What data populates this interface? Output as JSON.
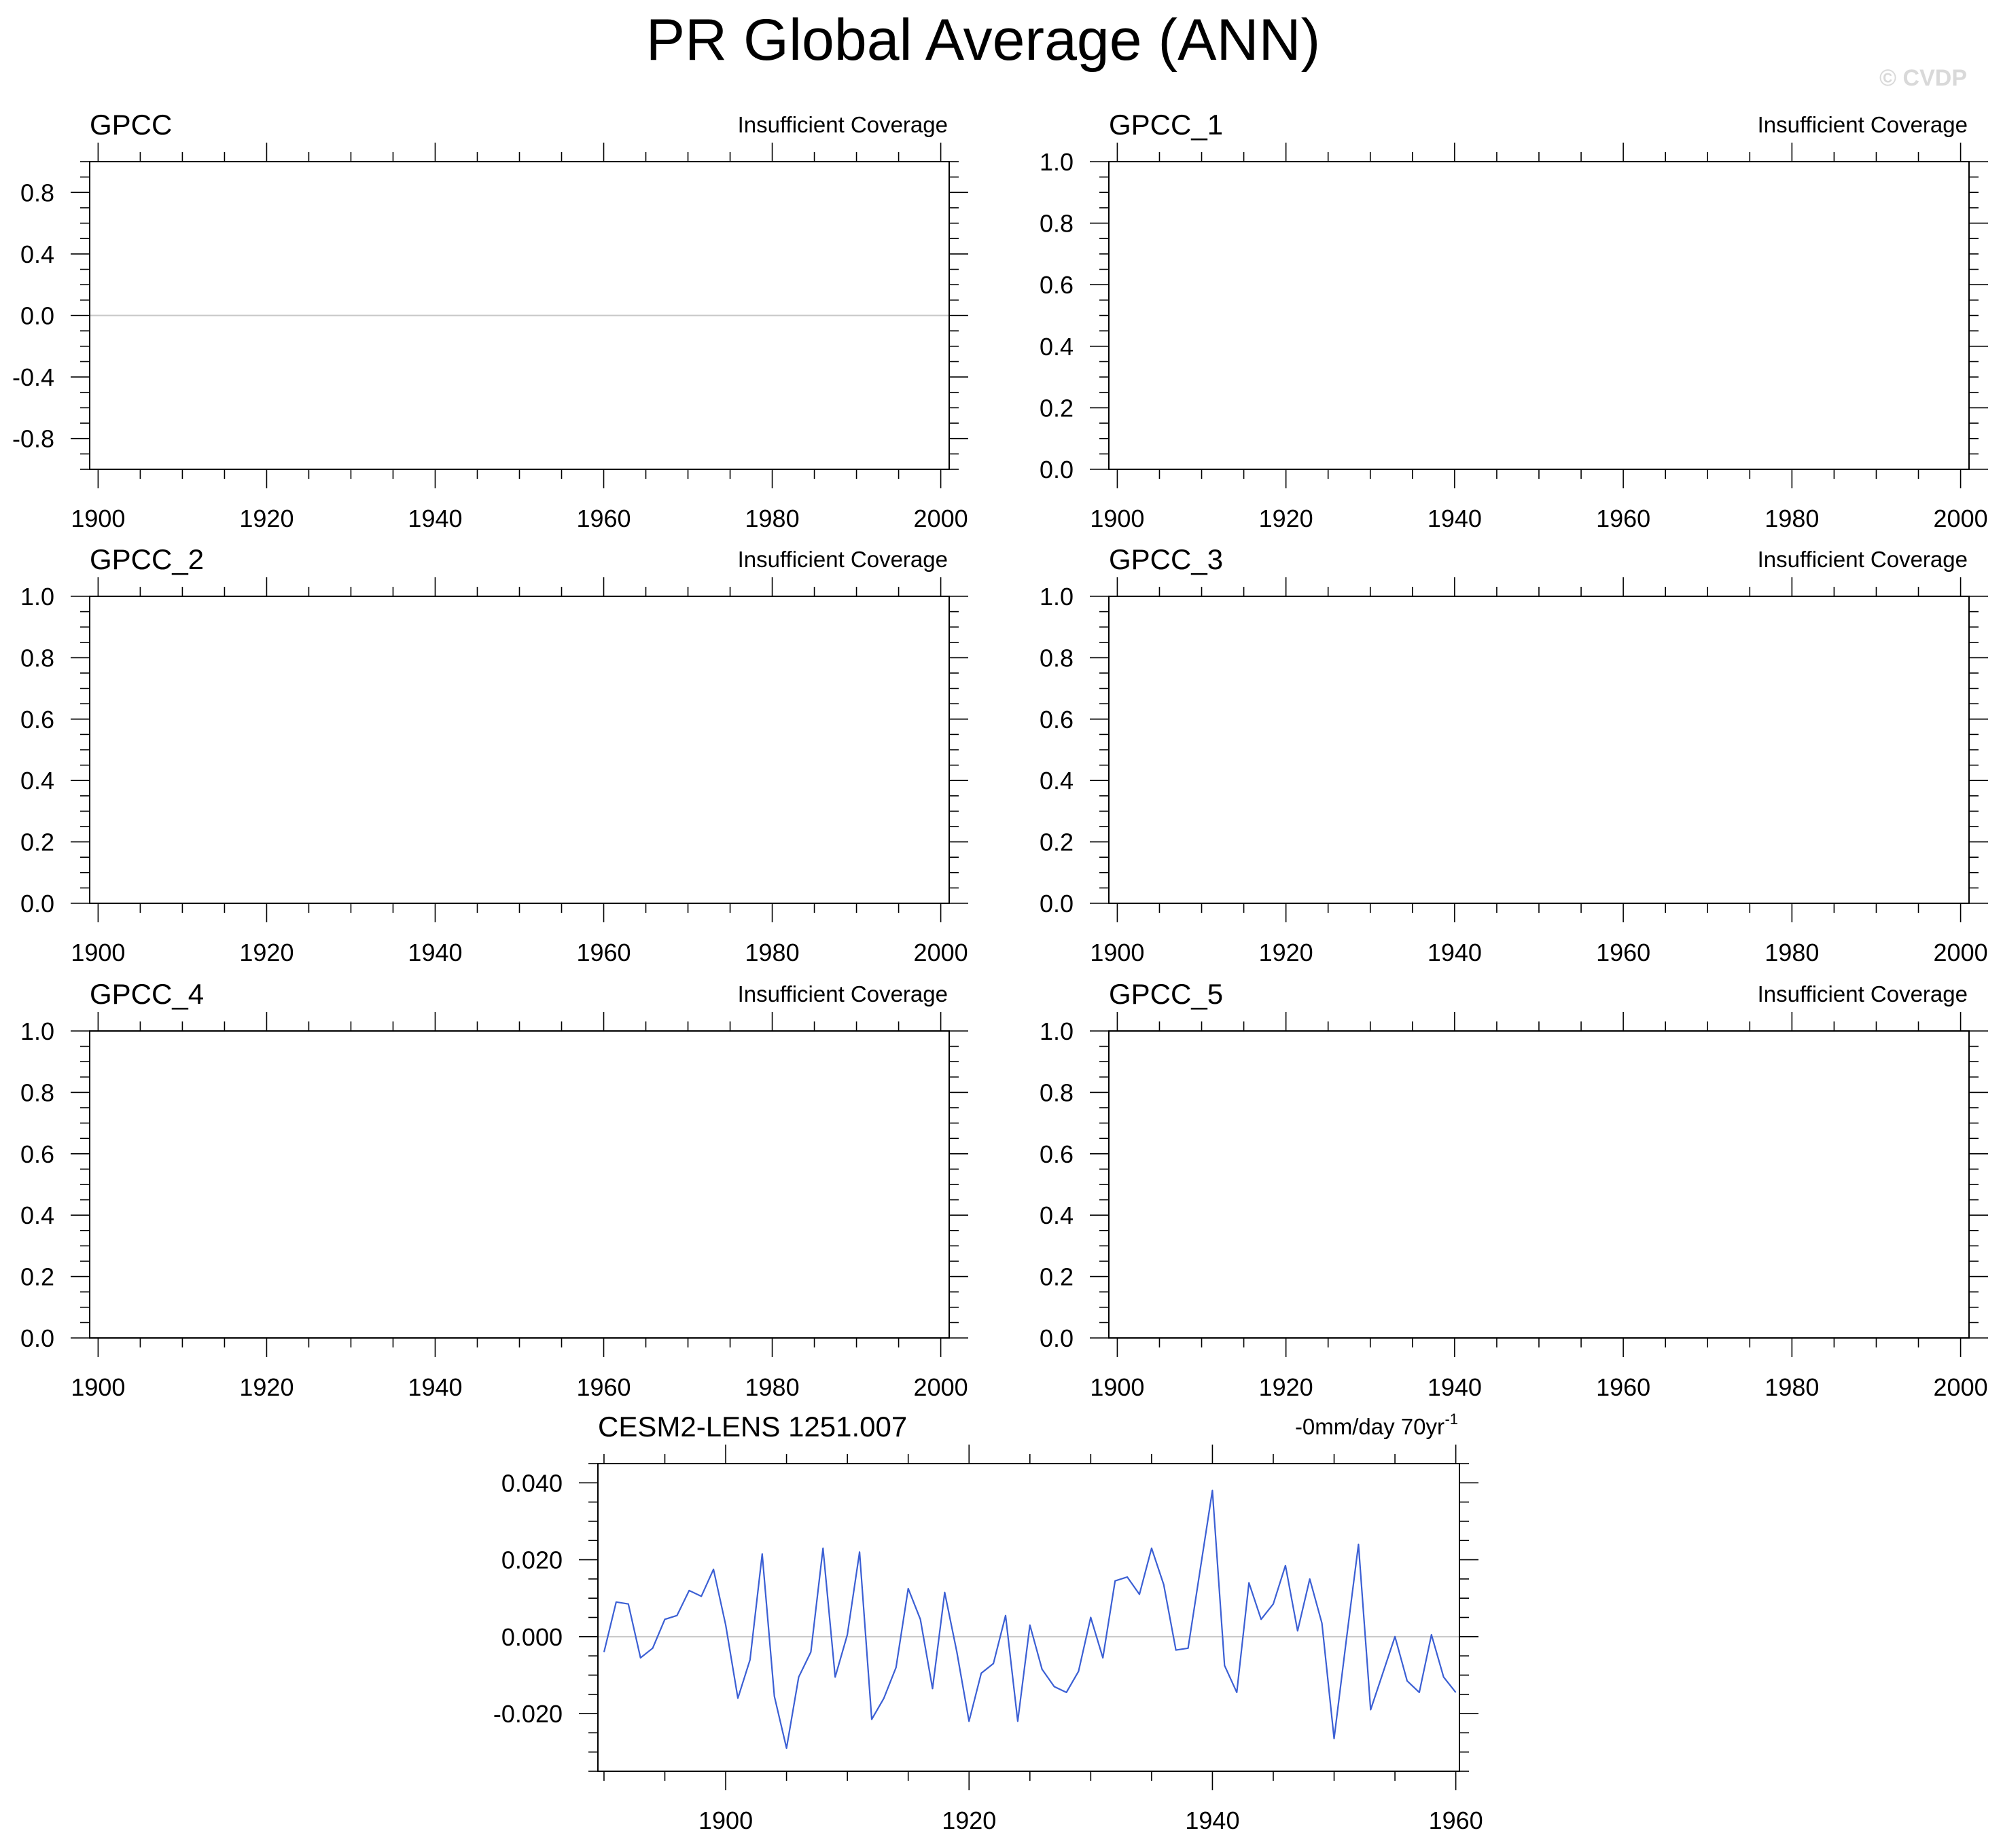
{
  "figure_title": "PR Global Average (ANN)",
  "watermark": "© CVDP",
  "colors": {
    "series": "#3b5fd4",
    "zero_line": "#c8c8c8",
    "frame": "#000000",
    "watermark": "#d9d9d9"
  },
  "chart_data": [
    {
      "type": "line",
      "title": "GPCC",
      "note": "Insufficient Coverage",
      "xlim": [
        1899,
        2001
      ],
      "ylim": [
        -1.0,
        1.0
      ],
      "xticks": [
        1900,
        1920,
        1940,
        1960,
        1980,
        2000
      ],
      "xtick_labels": [
        "1900",
        "1920",
        "1940",
        "1960",
        "1980",
        "2000"
      ],
      "yticks": [
        -0.8,
        -0.4,
        0.0,
        0.4,
        0.8
      ],
      "ytick_labels": [
        "-0.8",
        "-0.4",
        "0.0",
        "0.4",
        "0.8"
      ],
      "zero_line": true,
      "series": []
    },
    {
      "type": "line",
      "title": "GPCC_1",
      "note": "Insufficient Coverage",
      "xlim": [
        1899,
        2001
      ],
      "ylim": [
        0.0,
        1.0
      ],
      "xticks": [
        1900,
        1920,
        1940,
        1960,
        1980,
        2000
      ],
      "xtick_labels": [
        "1900",
        "1920",
        "1940",
        "1960",
        "1980",
        "2000"
      ],
      "yticks": [
        0.0,
        0.2,
        0.4,
        0.6,
        0.8,
        1.0
      ],
      "ytick_labels": [
        "0.0",
        "0.2",
        "0.4",
        "0.6",
        "0.8",
        "1.0"
      ],
      "zero_line": false,
      "series": []
    },
    {
      "type": "line",
      "title": "GPCC_2",
      "note": "Insufficient Coverage",
      "xlim": [
        1899,
        2001
      ],
      "ylim": [
        0.0,
        1.0
      ],
      "xticks": [
        1900,
        1920,
        1940,
        1960,
        1980,
        2000
      ],
      "xtick_labels": [
        "1900",
        "1920",
        "1940",
        "1960",
        "1980",
        "2000"
      ],
      "yticks": [
        0.0,
        0.2,
        0.4,
        0.6,
        0.8,
        1.0
      ],
      "ytick_labels": [
        "0.0",
        "0.2",
        "0.4",
        "0.6",
        "0.8",
        "1.0"
      ],
      "zero_line": false,
      "series": []
    },
    {
      "type": "line",
      "title": "GPCC_3",
      "note": "Insufficient Coverage",
      "xlim": [
        1899,
        2001
      ],
      "ylim": [
        0.0,
        1.0
      ],
      "xticks": [
        1900,
        1920,
        1940,
        1960,
        1980,
        2000
      ],
      "xtick_labels": [
        "1900",
        "1920",
        "1940",
        "1960",
        "1980",
        "2000"
      ],
      "yticks": [
        0.0,
        0.2,
        0.4,
        0.6,
        0.8,
        1.0
      ],
      "ytick_labels": [
        "0.0",
        "0.2",
        "0.4",
        "0.6",
        "0.8",
        "1.0"
      ],
      "zero_line": false,
      "series": []
    },
    {
      "type": "line",
      "title": "GPCC_4",
      "note": "Insufficient Coverage",
      "xlim": [
        1899,
        2001
      ],
      "ylim": [
        0.0,
        1.0
      ],
      "xticks": [
        1900,
        1920,
        1940,
        1960,
        1980,
        2000
      ],
      "xtick_labels": [
        "1900",
        "1920",
        "1940",
        "1960",
        "1980",
        "2000"
      ],
      "yticks": [
        0.0,
        0.2,
        0.4,
        0.6,
        0.8,
        1.0
      ],
      "ytick_labels": [
        "0.0",
        "0.2",
        "0.4",
        "0.6",
        "0.8",
        "1.0"
      ],
      "zero_line": false,
      "series": []
    },
    {
      "type": "line",
      "title": "GPCC_5",
      "note": "Insufficient Coverage",
      "xlim": [
        1899,
        2001
      ],
      "ylim": [
        0.0,
        1.0
      ],
      "xticks": [
        1900,
        1920,
        1940,
        1960,
        1980,
        2000
      ],
      "xtick_labels": [
        "1900",
        "1920",
        "1940",
        "1960",
        "1980",
        "2000"
      ],
      "yticks": [
        0.0,
        0.2,
        0.4,
        0.6,
        0.8,
        1.0
      ],
      "ytick_labels": [
        "0.0",
        "0.2",
        "0.4",
        "0.6",
        "0.8",
        "1.0"
      ],
      "zero_line": false,
      "series": []
    },
    {
      "type": "line",
      "title": "CESM2-LENS 1251.007",
      "note": "-0mm/day 70yr",
      "note_superscript": "-1",
      "xlim": [
        1889.5,
        1960.3
      ],
      "ylim": [
        -0.035,
        0.045
      ],
      "xticks": [
        1900,
        1920,
        1940,
        1960
      ],
      "xtick_labels": [
        "1900",
        "1920",
        "1940",
        "1960"
      ],
      "yticks": [
        -0.02,
        0.0,
        0.02,
        0.04
      ],
      "ytick_labels": [
        "-0.020",
        "0.000",
        "0.020",
        "0.040"
      ],
      "zero_line": true,
      "series": [
        {
          "x": [
            1890,
            1891,
            1892,
            1893,
            1894,
            1895,
            1896,
            1897,
            1898,
            1899,
            1900,
            1901,
            1902,
            1903,
            1904,
            1905,
            1906,
            1907,
            1908,
            1909,
            1910,
            1911,
            1912,
            1913,
            1914,
            1915,
            1916,
            1917,
            1918,
            1919,
            1920,
            1921,
            1922,
            1923,
            1924,
            1925,
            1926,
            1927,
            1928,
            1929,
            1930,
            1931,
            1932,
            1933,
            1934,
            1935,
            1936,
            1937,
            1938,
            1939,
            1940,
            1941,
            1942,
            1943,
            1944,
            1945,
            1946,
            1947,
            1948,
            1949,
            1950,
            1951,
            1952,
            1953,
            1954,
            1955,
            1956,
            1957,
            1958,
            1959,
            1960
          ],
          "values": [
            -0.004,
            0.009,
            0.0085,
            -0.0055,
            -0.003,
            0.0045,
            0.0055,
            0.012,
            0.0105,
            0.0175,
            0.003,
            -0.016,
            -0.006,
            0.0215,
            -0.0155,
            -0.029,
            -0.0105,
            -0.004,
            0.023,
            -0.0105,
            0.0005,
            0.022,
            -0.0215,
            -0.016,
            -0.008,
            0.0125,
            0.0045,
            -0.0135,
            0.0115,
            -0.004,
            -0.022,
            -0.0095,
            -0.007,
            0.0055,
            -0.022,
            0.003,
            -0.0085,
            -0.013,
            -0.0145,
            -0.009,
            0.005,
            -0.0055,
            0.0145,
            0.0155,
            0.011,
            0.023,
            0.0135,
            -0.0035,
            -0.003,
            0.0175,
            0.038,
            -0.0075,
            -0.0145,
            0.014,
            0.0045,
            0.0085,
            0.0185,
            0.0015,
            0.015,
            0.0035,
            -0.0265,
            -0.001,
            0.024,
            -0.019,
            -0.0095,
            0.0,
            -0.0115,
            -0.0145,
            0.0005,
            -0.0105,
            -0.0145
          ]
        }
      ]
    }
  ]
}
